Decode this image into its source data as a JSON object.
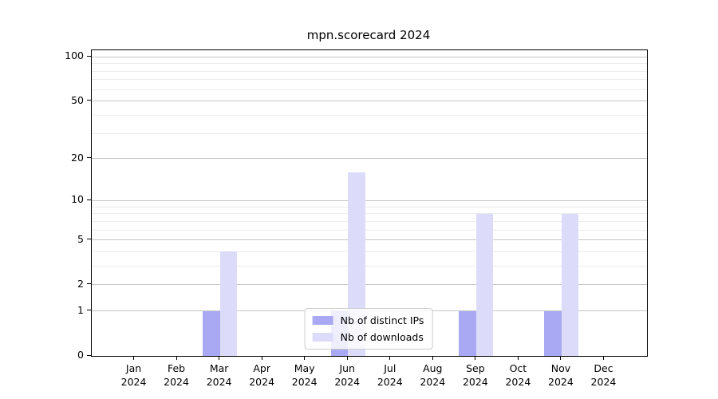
{
  "chart_data": {
    "type": "bar",
    "title": "mpn.scorecard 2024",
    "categories": [
      "Jan 2024",
      "Feb 2024",
      "Mar 2024",
      "Apr 2024",
      "May 2024",
      "Jun 2024",
      "Jul 2024",
      "Aug 2024",
      "Sep 2024",
      "Oct 2024",
      "Nov 2024",
      "Dec 2024"
    ],
    "series": [
      {
        "name": "Nb of distinct IPs",
        "color": "#a9a9f3",
        "values": [
          0,
          0,
          1,
          0,
          0,
          1,
          0,
          0,
          1,
          0,
          1,
          0
        ]
      },
      {
        "name": "Nb of downloads",
        "color": "#dcdcfa",
        "values": [
          0,
          0,
          4,
          0,
          0,
          16,
          0,
          0,
          8,
          0,
          8,
          0
        ]
      }
    ],
    "xlabel": "",
    "ylabel": "",
    "yscale": "log1p",
    "ylim": [
      0,
      111
    ],
    "yticks": [
      0,
      1,
      2,
      5,
      10,
      20,
      50,
      100
    ],
    "yminor": [
      3,
      4,
      6,
      7,
      8,
      9,
      30,
      40,
      60,
      70,
      80,
      90
    ],
    "grid": true,
    "legend_position": "lower center",
    "colors": {
      "major_grid": "#c6c6c6",
      "minor_grid": "#ececec",
      "spine": "#000000",
      "legend_border": "#cccccc"
    }
  }
}
